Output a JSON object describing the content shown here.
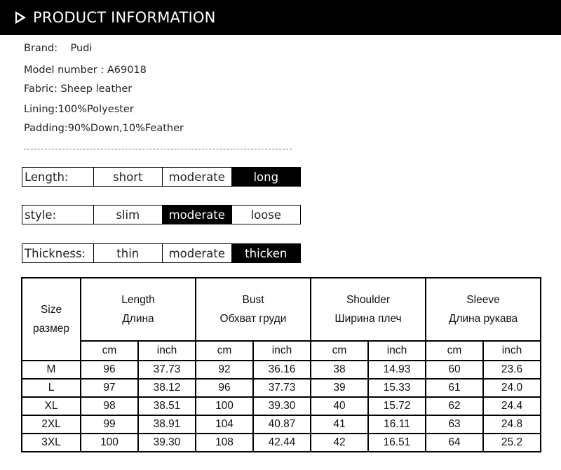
{
  "header": {
    "title": "PRODUCT INFORMATION",
    "icon": "play-triangle-icon"
  },
  "info": [
    "Brand:    Pudi",
    "Model number : A69018",
    "Fabric: Sheep leather",
    "Lining:100%Polyester",
    "Padding:90%Down,10%Feather"
  ],
  "attributes": [
    {
      "label": "Length:",
      "options": [
        "short",
        "moderate",
        "long"
      ],
      "selected": 2
    },
    {
      "label": "style:",
      "options": [
        "slim",
        "moderate",
        "loose"
      ],
      "selected": 1
    },
    {
      "label": "Thickness:",
      "options": [
        "thin",
        "moderate",
        "thicken"
      ],
      "selected": 2
    }
  ],
  "size_table": {
    "size_header": [
      "Size",
      "размер"
    ],
    "groups": [
      [
        "Length",
        "Длина"
      ],
      [
        "Bust",
        "Обхват груди"
      ],
      [
        "Shoulder",
        "Ширина плеч"
      ],
      [
        "Sleeve",
        "Длина рукава"
      ]
    ],
    "units": [
      "cm",
      "inch"
    ],
    "rows": [
      [
        "M",
        "96",
        "37.73",
        "92",
        "36.16",
        "38",
        "14.93",
        "60",
        "23.6"
      ],
      [
        "L",
        "97",
        "38.12",
        "96",
        "37.73",
        "39",
        "15.33",
        "61",
        "24.0"
      ],
      [
        "XL",
        "98",
        "38.51",
        "100",
        "39.30",
        "40",
        "15.72",
        "62",
        "24.4"
      ],
      [
        "2XL",
        "99",
        "38.91",
        "104",
        "40.87",
        "41",
        "16.11",
        "63",
        "24.8"
      ],
      [
        "3XL",
        "100",
        "39.30",
        "108",
        "42.44",
        "42",
        "16.51",
        "64",
        "25.2"
      ]
    ]
  }
}
